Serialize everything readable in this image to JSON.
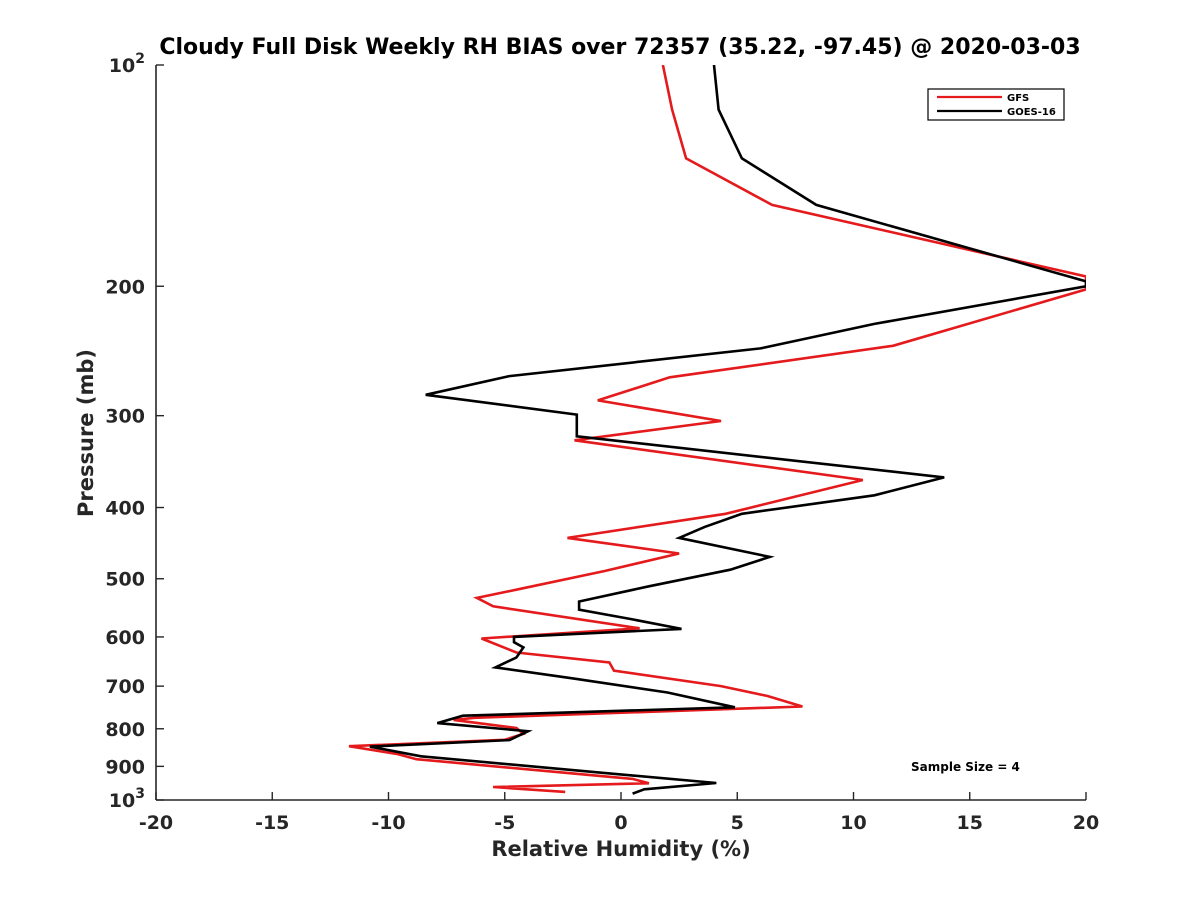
{
  "chart_data": {
    "type": "line",
    "title": "Cloudy Full Disk Weekly RH BIAS over 72357 (35.22, -97.45) @ 2020-03-03",
    "xlabel": "Relative Humidity (%)",
    "ylabel": "Pressure (mb)",
    "xlim": [
      -20,
      20
    ],
    "ylim": [
      100,
      1000
    ],
    "y_scale": "log",
    "y_direction": "reversed",
    "grid": false,
    "x_ticks": [
      "-20",
      "-15",
      "-10",
      "-5",
      "0",
      "5",
      "10",
      "15",
      "20"
    ],
    "y_ticks": [
      {
        "value": 100,
        "base": "10",
        "exp": "2"
      },
      {
        "value": 200,
        "label": "200"
      },
      {
        "value": 300,
        "label": "300"
      },
      {
        "value": 400,
        "label": "400"
      },
      {
        "value": 500,
        "label": "500"
      },
      {
        "value": 600,
        "label": "600"
      },
      {
        "value": 700,
        "label": "700"
      },
      {
        "value": 800,
        "label": "800"
      },
      {
        "value": 900,
        "label": "900"
      },
      {
        "value": 1000,
        "base": "10",
        "exp": "3"
      }
    ],
    "legend_position": "top-right",
    "annotation": "Sample Size = 4",
    "series": [
      {
        "name": "GFS",
        "color": "#e41a1c",
        "points": [
          [
            1.8,
            100
          ],
          [
            2.2,
            115
          ],
          [
            2.8,
            134
          ],
          [
            6.5,
            155
          ],
          [
            20.0,
            194
          ],
          [
            20.0,
            202
          ],
          [
            11.7,
            241
          ],
          [
            2.1,
            266
          ],
          [
            -1.0,
            286
          ],
          [
            4.3,
            305
          ],
          [
            -2.0,
            324
          ],
          [
            10.4,
            367
          ],
          [
            4.5,
            408
          ],
          [
            -2.3,
            440
          ],
          [
            2.5,
            462
          ],
          [
            -0.7,
            488
          ],
          [
            -4.2,
            515
          ],
          [
            -6.2,
            531
          ],
          [
            -5.5,
            545
          ],
          [
            0.8,
            584
          ],
          [
            -6.0,
            603
          ],
          [
            -4.5,
            630
          ],
          [
            -0.5,
            650
          ],
          [
            -0.3,
            667
          ],
          [
            4.3,
            700
          ],
          [
            6.3,
            722
          ],
          [
            7.8,
            746
          ],
          [
            -6.3,
            773
          ],
          [
            -7.2,
            778
          ],
          [
            -4.5,
            798
          ],
          [
            -4.2,
            813
          ],
          [
            -5.0,
            828
          ],
          [
            -11.7,
            845
          ],
          [
            -9.6,
            866
          ],
          [
            -8.8,
            880
          ],
          [
            0.5,
            936
          ],
          [
            1.2,
            949
          ],
          [
            -5.5,
            960
          ],
          [
            -2.4,
            975
          ]
        ]
      },
      {
        "name": "GOES-16",
        "color": "#000000",
        "points": [
          [
            4.0,
            100
          ],
          [
            4.2,
            115
          ],
          [
            5.2,
            134
          ],
          [
            8.4,
            155
          ],
          [
            20.0,
            197
          ],
          [
            20.0,
            200
          ],
          [
            10.9,
            225
          ],
          [
            6.0,
            243
          ],
          [
            -4.8,
            265
          ],
          [
            -8.4,
            281
          ],
          [
            -1.9,
            299
          ],
          [
            -1.9,
            320
          ],
          [
            13.9,
            364
          ],
          [
            10.9,
            385
          ],
          [
            5.2,
            408
          ],
          [
            3.6,
            425
          ],
          [
            2.5,
            440
          ],
          [
            6.4,
            467
          ],
          [
            4.7,
            486
          ],
          [
            1.2,
            512
          ],
          [
            -1.8,
            537
          ],
          [
            -1.8,
            551
          ],
          [
            0.5,
            568
          ],
          [
            2.6,
            585
          ],
          [
            -4.6,
            600
          ],
          [
            -4.6,
            610
          ],
          [
            -4.2,
            620
          ],
          [
            -4.5,
            640
          ],
          [
            -5.4,
            660
          ],
          [
            -2.1,
            683
          ],
          [
            2.0,
            714
          ],
          [
            4.9,
            748
          ],
          [
            -6.8,
            768
          ],
          [
            -7.9,
            786
          ],
          [
            -4.0,
            806
          ],
          [
            -4.8,
            829
          ],
          [
            -10.8,
            846
          ],
          [
            -8.6,
            872
          ],
          [
            -0.5,
            920
          ],
          [
            4.1,
            948
          ],
          [
            1.0,
            967
          ],
          [
            0.5,
            980
          ]
        ]
      }
    ]
  }
}
